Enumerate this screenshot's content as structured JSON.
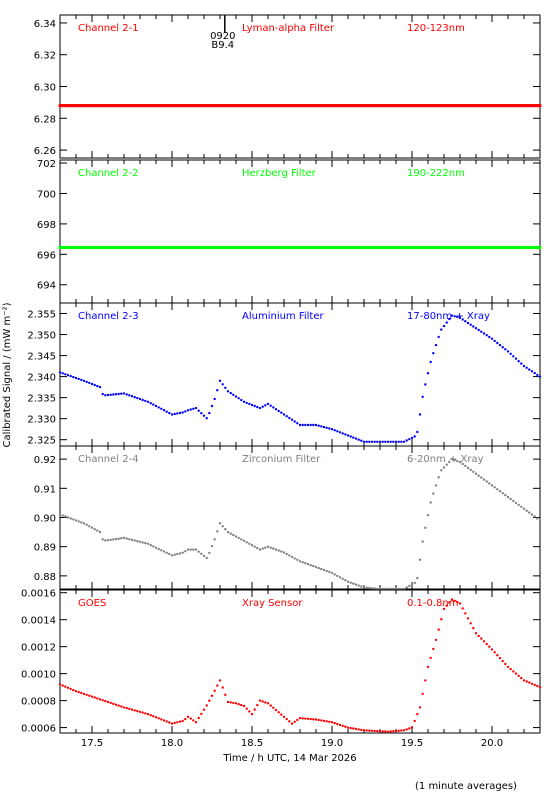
{
  "chart_data": {
    "type": "scatter",
    "xlabel": "Time / h UTC, 14 Mar 2026",
    "ylabel": "Calibrated Signal / (mW m⁻²)",
    "xlim": [
      17.3,
      20.3
    ],
    "xticks": [
      17.5,
      18.0,
      18.5,
      19.0,
      19.5,
      20.0
    ],
    "xtick_labels": [
      "17.5",
      "18.0",
      "18.5",
      "19.0",
      "19.5",
      "20.0"
    ],
    "marker_event": {
      "x": 18.33,
      "labels": [
        "0920",
        "B9.4"
      ]
    },
    "panels": [
      {
        "channel": "Channel 2-1",
        "filter": "Lyman-alpha Filter",
        "band": "120-123nm",
        "color": "#ff0000",
        "ylim": [
          6.255,
          6.345
        ],
        "yticks": [
          6.26,
          6.28,
          6.3,
          6.32,
          6.34
        ],
        "ytick_labels": [
          "6.26",
          "6.28",
          "6.30",
          "6.32",
          "6.34"
        ],
        "series": {
          "x": [
            17.3,
            20.3
          ],
          "y": [
            6.288,
            6.288
          ]
        }
      },
      {
        "channel": "Channel 2-2",
        "filter": "Herzberg Filter",
        "band": "190-222nm",
        "color": "#00ff00",
        "ylim": [
          692.8,
          702.2
        ],
        "yticks": [
          694,
          696,
          698,
          700,
          702
        ],
        "ytick_labels": [
          "694",
          "696",
          "698",
          "700",
          "702"
        ],
        "series": {
          "x": [
            17.3,
            20.3
          ],
          "y": [
            696.45,
            696.45
          ]
        }
      },
      {
        "channel": "Channel 2-3",
        "filter": "Aluminium Filter",
        "band": "17-80nm + Xray",
        "color": "#0000ff",
        "ylim": [
          2.3235,
          2.3575
        ],
        "yticks": [
          2.325,
          2.33,
          2.335,
          2.34,
          2.345,
          2.35,
          2.355
        ],
        "ytick_labels": [
          "2.325",
          "2.330",
          "2.335",
          "2.340",
          "2.345",
          "2.350",
          "2.355"
        ],
        "series": {
          "x": [
            17.3,
            17.45,
            17.55,
            17.57,
            17.7,
            17.85,
            18.0,
            18.07,
            18.1,
            18.15,
            18.22,
            18.27,
            18.3,
            18.35,
            18.45,
            18.55,
            18.6,
            18.7,
            18.8,
            18.9,
            19.0,
            19.1,
            19.2,
            19.3,
            19.45,
            19.53,
            19.57,
            19.62,
            19.68,
            19.75,
            19.8,
            19.9,
            20.0,
            20.1,
            20.2,
            20.3
          ],
          "y": [
            2.341,
            2.339,
            2.3375,
            2.3355,
            2.336,
            2.334,
            2.331,
            2.3315,
            2.332,
            2.3325,
            2.33,
            2.335,
            2.339,
            2.3365,
            2.334,
            2.3325,
            2.3335,
            2.331,
            2.3285,
            2.3285,
            2.3275,
            2.326,
            2.3245,
            2.3245,
            2.3245,
            2.326,
            2.336,
            2.344,
            2.351,
            2.3545,
            2.354,
            2.3515,
            2.349,
            2.346,
            2.3425,
            2.34
          ]
        }
      },
      {
        "channel": "Channel 2-4",
        "filter": "Zirconium Filter",
        "band": "6-20nm + Xray",
        "color": "#808080",
        "ylim": [
          0.8755,
          0.9245
        ],
        "yticks": [
          0.88,
          0.89,
          0.9,
          0.91,
          0.92
        ],
        "ytick_labels": [
          "0.88",
          "0.89",
          "0.90",
          "0.91",
          "0.92"
        ],
        "series": {
          "x": [
            17.3,
            17.45,
            17.55,
            17.57,
            17.7,
            17.85,
            18.0,
            18.07,
            18.1,
            18.15,
            18.22,
            18.27,
            18.3,
            18.35,
            18.45,
            18.55,
            18.6,
            18.7,
            18.8,
            18.9,
            19.0,
            19.1,
            19.2,
            19.3,
            19.45,
            19.53,
            19.57,
            19.62,
            19.68,
            19.75,
            19.8,
            19.9,
            20.0,
            20.1,
            20.2,
            20.3
          ],
          "y": [
            0.901,
            0.898,
            0.895,
            0.892,
            0.893,
            0.891,
            0.887,
            0.888,
            0.889,
            0.889,
            0.886,
            0.893,
            0.898,
            0.895,
            0.892,
            0.889,
            0.89,
            0.888,
            0.885,
            0.883,
            0.881,
            0.878,
            0.876,
            0.8755,
            0.8755,
            0.878,
            0.893,
            0.906,
            0.916,
            0.92,
            0.919,
            0.915,
            0.911,
            0.907,
            0.903,
            0.899
          ]
        }
      },
      {
        "channel": "GOES",
        "filter": "Xray Sensor",
        "band": "0.1-0.8nm",
        "color": "#ff0000",
        "ylim": [
          0.00056,
          0.00162
        ],
        "yticks": [
          0.0006,
          0.0008,
          0.001,
          0.0012,
          0.0014,
          0.0016
        ],
        "ytick_labels": [
          "0.0006",
          "0.0008",
          "0.0010",
          "0.0012",
          "0.0014",
          "0.0016"
        ],
        "series": {
          "x": [
            17.3,
            17.4,
            17.5,
            17.6,
            17.7,
            17.85,
            18.0,
            18.07,
            18.1,
            18.15,
            18.22,
            18.27,
            18.3,
            18.35,
            18.4,
            18.45,
            18.5,
            18.55,
            18.6,
            18.7,
            18.75,
            18.8,
            18.9,
            19.0,
            19.1,
            19.2,
            19.35,
            19.45,
            19.5,
            19.55,
            19.6,
            19.65,
            19.7,
            19.75,
            19.8,
            19.9,
            20.0,
            20.1,
            20.2,
            20.3
          ],
          "y": [
            0.00092,
            0.00087,
            0.00083,
            0.00079,
            0.00075,
            0.0007,
            0.00063,
            0.00065,
            0.00068,
            0.00064,
            0.00077,
            0.00088,
            0.00095,
            0.00079,
            0.00078,
            0.00076,
            0.0007,
            0.0008,
            0.00078,
            0.00068,
            0.00063,
            0.00067,
            0.00066,
            0.00064,
            0.0006,
            0.00058,
            0.00057,
            0.00058,
            0.0006,
            0.00075,
            0.00105,
            0.00125,
            0.00148,
            0.00155,
            0.00152,
            0.0013,
            0.00118,
            0.00105,
            0.00095,
            0.0009
          ]
        }
      }
    ]
  },
  "footnote": "(1 minute averages)"
}
